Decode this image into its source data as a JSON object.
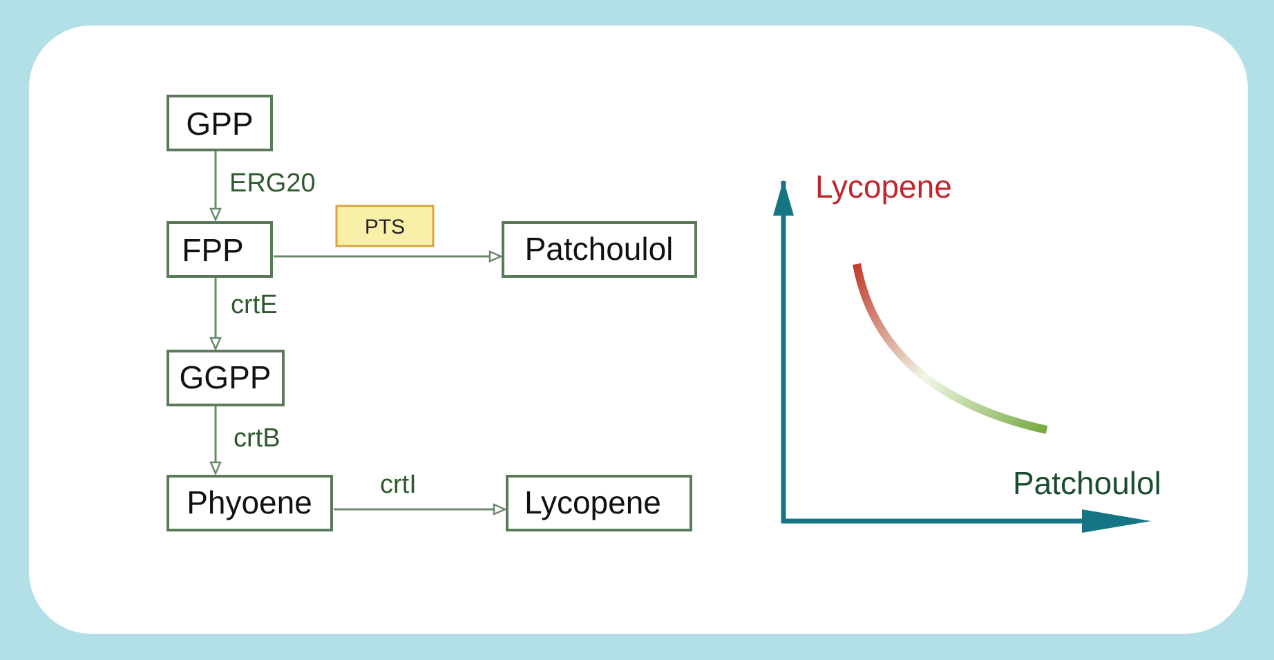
{
  "pathway": {
    "nodes": {
      "gpp": "GPP",
      "fpp": "FPP",
      "ggpp": "GGPP",
      "phyoene": "Phyoene",
      "patchoulol": "Patchoulol",
      "lycopene": "Lycopene"
    },
    "enzymes": {
      "erg20": "ERG20",
      "crte": "crtE",
      "crtb": "crtB",
      "crti": "crtI",
      "pts": "PTS"
    }
  },
  "tradeoff_plot": {
    "y_label": "Lycopene",
    "x_label": "Patchoulol",
    "colors": {
      "axis": "#157585",
      "y_label": "#c0272d",
      "x_label": "#1a4d2e",
      "curve_start": "#c0392b",
      "curve_mid": "#f1f7e6",
      "curve_end": "#74a83c"
    }
  },
  "colors": {
    "frame": "#b3dfe6",
    "node_border": "#5a7a5a",
    "enzyme_text": "#2e5a2e",
    "pts_fill": "#f8f0a8",
    "pts_border": "#d9a441"
  }
}
